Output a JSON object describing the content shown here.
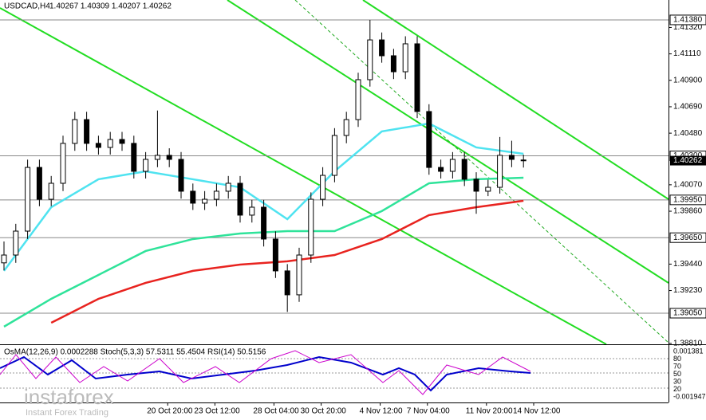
{
  "chart_data": {
    "type": "candlestick",
    "title": "USDCAD,H4",
    "quote": "1.40267 1.40309 1.40207 1.40262",
    "ylim": [
      1.38803,
      1.41538
    ],
    "yticks": [
      {
        "value": 1.4132,
        "label": "1.41320"
      },
      {
        "value": 1.4111,
        "label": "1.41110"
      },
      {
        "value": 1.409,
        "label": "1.40900"
      },
      {
        "value": 1.4069,
        "label": "1.40690"
      },
      {
        "value": 1.4048,
        "label": "1.40480"
      },
      {
        "value": 1.4007,
        "label": "1.40070"
      },
      {
        "value": 1.3986,
        "label": "1.39860"
      },
      {
        "value": 1.3944,
        "label": "1.39440"
      },
      {
        "value": 1.3923,
        "label": "1.39230"
      },
      {
        "value": 1.3881,
        "label": "1.38810"
      }
    ],
    "levels": [
      {
        "value": 1.4138,
        "label": "1.41380"
      },
      {
        "value": 1.403,
        "label": "1.40300"
      },
      {
        "value": 1.3995,
        "label": "1.39950"
      },
      {
        "value": 1.3965,
        "label": "1.39650"
      },
      {
        "value": 1.3905,
        "label": "1.39050"
      }
    ],
    "last_price": {
      "value": 1.40262,
      "label": "1.40262"
    },
    "time_labels": [
      "20 Oct 20:00",
      "23 Oct 12:00",
      "28 Oct 04:00",
      "30 Oct 20:00",
      "4 Nov 12:00",
      "7 Nov 04:00",
      "11 Nov 20:00",
      "14 Nov 12:00"
    ],
    "time_label_bars": [
      14,
      18,
      23,
      27,
      32,
      36,
      41,
      45
    ],
    "ohlc": [
      [
        1.3945,
        1.3962,
        1.3939,
        1.39512
      ],
      [
        1.39512,
        1.3976,
        1.3945,
        1.39702
      ],
      [
        1.39702,
        1.4027,
        1.3964,
        1.40208
      ],
      [
        1.40208,
        1.4027,
        1.399,
        1.39955
      ],
      [
        1.39955,
        1.4014,
        1.399,
        1.40082
      ],
      [
        1.40082,
        1.4046,
        1.4002,
        1.40399
      ],
      [
        1.40399,
        1.4065,
        1.4034,
        1.40588
      ],
      [
        1.40588,
        1.4065,
        1.4034,
        1.40399
      ],
      [
        1.40399,
        1.4046,
        1.4031,
        1.40367
      ],
      [
        1.40367,
        1.4049,
        1.4031,
        1.4043
      ],
      [
        1.4043,
        1.4049,
        1.4034,
        1.40399
      ],
      [
        1.40399,
        1.4046,
        1.4012,
        1.40177
      ],
      [
        1.40177,
        1.4033,
        1.4012,
        1.40272
      ],
      [
        1.40272,
        1.4066,
        1.4021,
        1.40304
      ],
      [
        1.40304,
        1.4036,
        1.4021,
        1.40272
      ],
      [
        1.40272,
        1.4033,
        1.3996,
        1.40019
      ],
      [
        1.40019,
        1.4008,
        1.3987,
        1.39924
      ],
      [
        1.39924,
        1.4002,
        1.3987,
        1.39955
      ],
      [
        1.39955,
        1.4008,
        1.399,
        1.40019
      ],
      [
        1.40019,
        1.4014,
        1.3996,
        1.40082
      ],
      [
        1.40082,
        1.4014,
        1.3977,
        1.39829
      ],
      [
        1.39829,
        1.3995,
        1.3977,
        1.39892
      ],
      [
        1.39892,
        1.3995,
        1.3958,
        1.39639
      ],
      [
        1.39639,
        1.397,
        1.3933,
        1.39386
      ],
      [
        1.39386,
        1.3944,
        1.3906,
        1.39196
      ],
      [
        1.39196,
        1.3957,
        1.3914,
        1.39512
      ],
      [
        1.39512,
        1.4001,
        1.3945,
        1.39955
      ],
      [
        1.39955,
        1.4021,
        1.399,
        1.40145
      ],
      [
        1.40145,
        1.4052,
        1.4009,
        1.40462
      ],
      [
        1.40462,
        1.4065,
        1.404,
        1.40588
      ],
      [
        1.40588,
        1.4096,
        1.4053,
        1.40905
      ],
      [
        1.40905,
        1.4138,
        1.4085,
        1.41221
      ],
      [
        1.41221,
        1.4128,
        1.4104,
        1.41095
      ],
      [
        1.41095,
        1.4115,
        1.4091,
        1.40968
      ],
      [
        1.40968,
        1.4125,
        1.4091,
        1.4119
      ],
      [
        1.4119,
        1.4125,
        1.406,
        1.40652
      ],
      [
        1.40652,
        1.4071,
        1.4015,
        1.40208
      ],
      [
        1.40208,
        1.4027,
        1.4012,
        1.40177
      ],
      [
        1.40177,
        1.4033,
        1.4012,
        1.40272
      ],
      [
        1.40272,
        1.4033,
        1.4006,
        1.40114
      ],
      [
        1.40114,
        1.4017,
        1.3984,
        1.40019
      ],
      [
        1.40019,
        1.4011,
        1.3998,
        1.4005
      ],
      [
        1.4005,
        1.4045,
        1.4,
        1.40304
      ],
      [
        1.40304,
        1.4042,
        1.4021,
        1.40272
      ],
      [
        1.40267,
        1.40309,
        1.40207,
        1.40262
      ]
    ],
    "ma_bars": [
      0,
      4,
      8,
      12,
      16,
      20,
      24,
      28,
      32,
      36,
      40,
      44
    ],
    "series": [
      {
        "color": "#4fe3f0",
        "values": [
          1.39386,
          1.39892,
          1.40114,
          1.40177,
          1.40114,
          1.4005,
          1.39797,
          1.40177,
          1.40494,
          1.40557,
          1.40367,
          1.40316
        ]
      },
      {
        "color": "#2fe39a",
        "values": [
          1.38943,
          1.39164,
          1.39354,
          1.39544,
          1.39639,
          1.39683,
          1.39702,
          1.39702,
          1.39861,
          1.40082,
          1.40114,
          1.40126
        ]
      },
      {
        "color": "#e8231f",
        "values": [
          null,
          1.38974,
          1.39164,
          1.39291,
          1.39386,
          1.39436,
          1.39462,
          1.39512,
          1.39639,
          1.39829,
          1.39892,
          1.39943
        ]
      }
    ],
    "indicator_label": "OsMA(12,26,9) 0.0002288 Stoch(5,3,3) 57.5311 55.4504 RSI(14) 50.5156",
    "indicator_axis": [
      "0.001381",
      "80",
      "70",
      "50",
      "30",
      "20",
      "-0.001947"
    ],
    "watermark": "instaforex",
    "watermark_sub": "Instant Forex Trading"
  }
}
